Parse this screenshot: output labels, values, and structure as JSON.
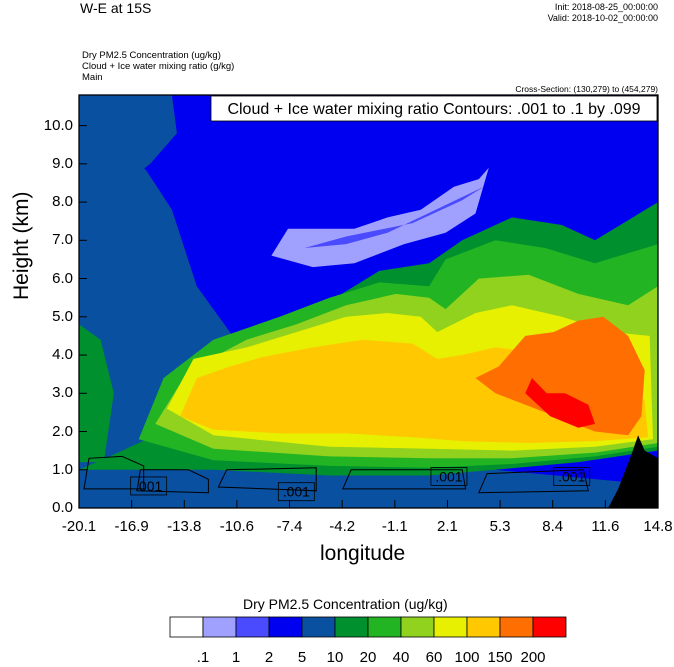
{
  "header": {
    "title": "W-E at 15S",
    "init": "Init: 2018-08-25_00:00:00",
    "valid": "Valid: 2018-10-02_00:00:00",
    "meta_lines": [
      "Dry PM2.5 Concentration   (ug/kg)",
      "Cloud + Ice water mixing ratio   (g/kg)",
      "Main"
    ],
    "cross_section": "Cross-Section: (130,279) to (454,279)"
  },
  "chart_data": {
    "type": "heatmap",
    "title": "",
    "overlay_label": "Cloud + Ice water mixing ratio Contours: .001 to .1 by .099",
    "xlabel": "longitude",
    "ylabel": "Height (km)",
    "x_ticks": [
      "-20.1",
      "-16.9",
      "-13.8",
      "-10.6",
      "-7.4",
      "-4.2",
      "-1.1",
      "2.1",
      "5.3",
      "8.4",
      "11.6",
      "14.8"
    ],
    "y_ticks": [
      "0.0",
      "1.0",
      "2.0",
      "3.0",
      "4.0",
      "5.0",
      "6.0",
      "7.0",
      "8.0",
      "9.0",
      "10.0"
    ],
    "xlim": [
      -20.1,
      14.8
    ],
    "ylim": [
      0,
      10.8
    ],
    "contour_labels": [
      ".001",
      ".001",
      ".001",
      ".001"
    ],
    "colorbar": {
      "title": "Dry PM2.5 Concentration  (ug/kg)",
      "levels": [
        ".1",
        "1",
        "2",
        "5",
        "10",
        "20",
        "40",
        "60",
        "100",
        "150",
        "200"
      ],
      "colors": [
        "#ffffff",
        "#a0a0ff",
        "#4a4aff",
        "#0000f0",
        "#0a50a0",
        "#00902e",
        "#22b422",
        "#90d21e",
        "#e6f000",
        "#ffc800",
        "#ff6e00",
        "#ff0000"
      ]
    }
  }
}
